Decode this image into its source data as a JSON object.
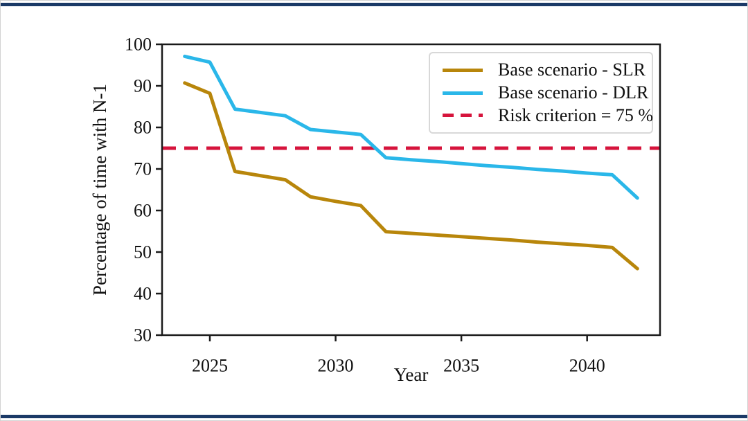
{
  "figure": {
    "background": "#ffffff",
    "outer_border_color": "#d2d2d2",
    "rule_color": "#1b3a67"
  },
  "chart_data": {
    "type": "line",
    "title": "",
    "xlabel": "Year",
    "ylabel": "Percentage of time with N-1",
    "xlim": [
      2023.1,
      2042.9
    ],
    "ylim": [
      30,
      100
    ],
    "x_ticks": [
      2025,
      2030,
      2035,
      2040
    ],
    "y_ticks": [
      30,
      40,
      50,
      60,
      70,
      80,
      90,
      100
    ],
    "grid": false,
    "axis_color": "#1a1a1a",
    "x": [
      2024,
      2025,
      2026,
      2027,
      2028,
      2029,
      2030,
      2031,
      2032,
      2033,
      2034,
      2035,
      2036,
      2037,
      2038,
      2039,
      2040,
      2041,
      2042
    ],
    "series": [
      {
        "id": "slr",
        "name": "Base scenario - SLR",
        "color": "#b8860b",
        "style": "solid",
        "values": [
          90.7,
          88.2,
          69.4,
          68.4,
          67.4,
          63.3,
          62.2,
          61.2,
          54.9,
          54.5,
          54.1,
          53.7,
          53.3,
          52.9,
          52.4,
          52.0,
          51.6,
          51.1,
          46.0
        ]
      },
      {
        "id": "dlr",
        "name": "Base scenario - DLR",
        "color": "#2ab7e9",
        "style": "solid",
        "values": [
          97.1,
          95.7,
          84.4,
          83.6,
          82.8,
          79.5,
          78.9,
          78.3,
          72.7,
          72.2,
          71.8,
          71.3,
          70.8,
          70.4,
          69.9,
          69.5,
          69.0,
          68.6,
          63.0
        ]
      }
    ],
    "reference_line": {
      "label": "Risk criterion = 75 %",
      "value": 75,
      "color": "#d6143c",
      "style": "dashed"
    },
    "legend_position": "upper right"
  }
}
